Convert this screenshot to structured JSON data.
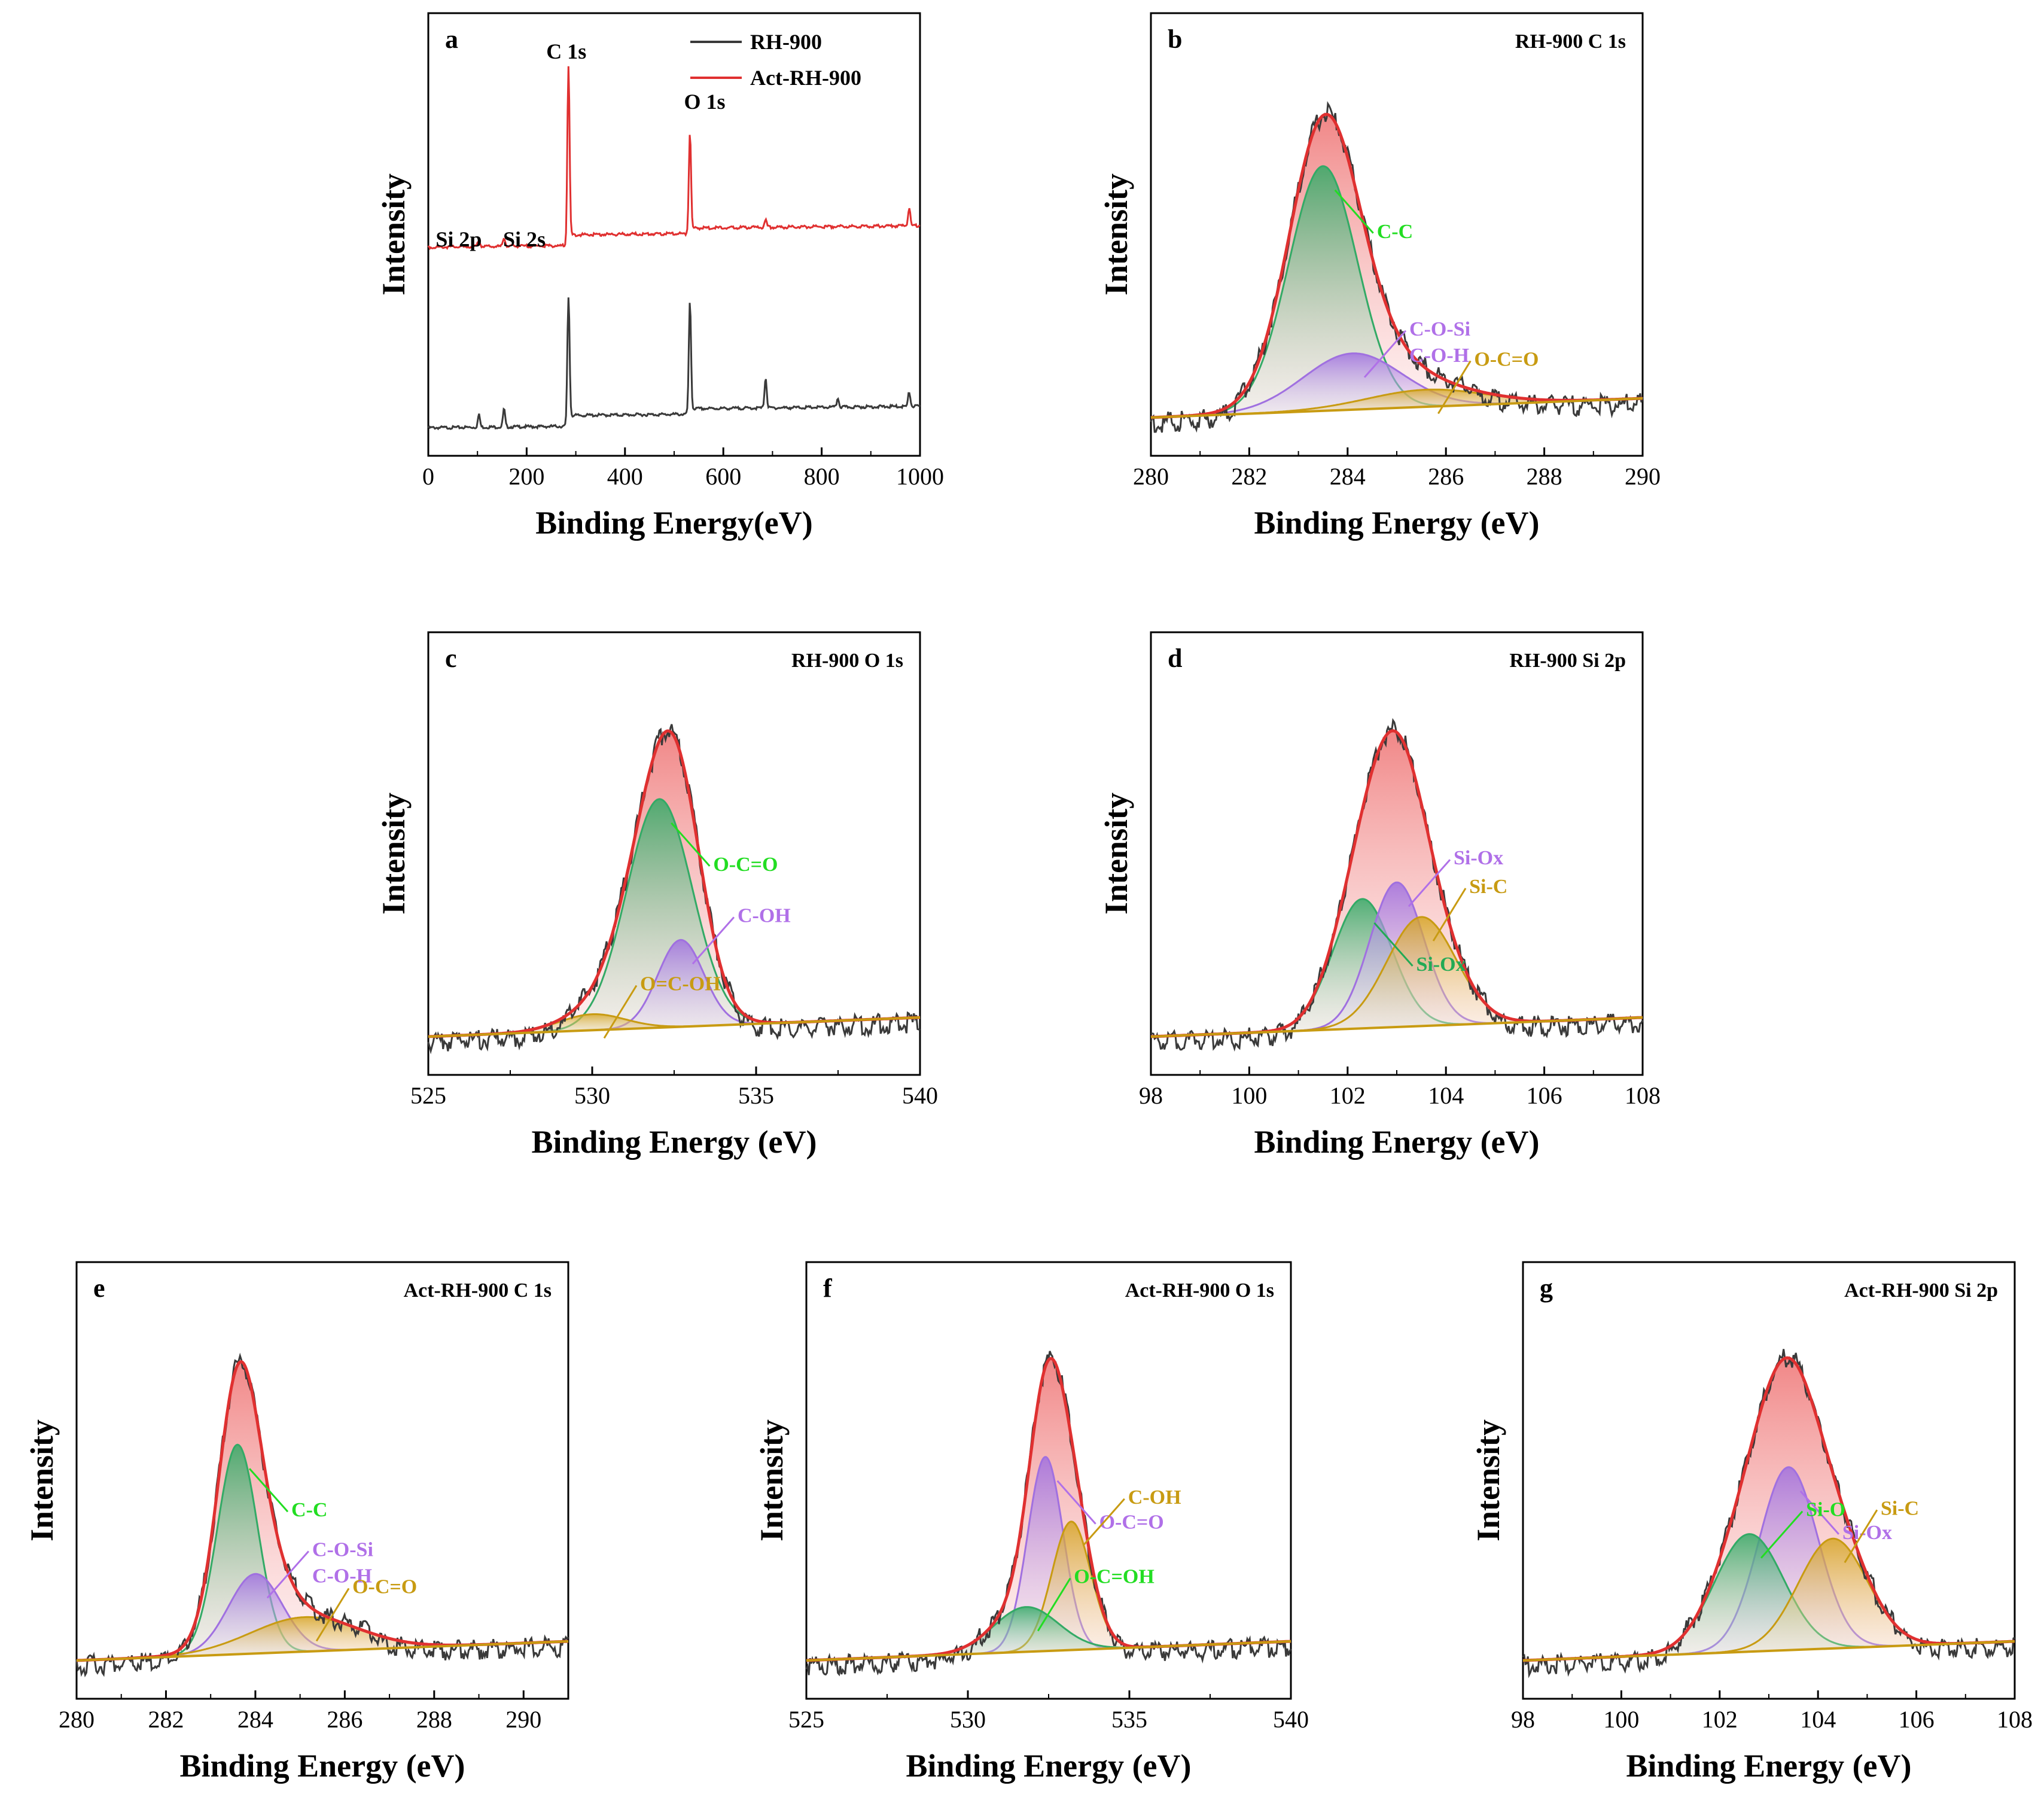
{
  "chart_data": [
    {
      "id": "a",
      "type": "line",
      "letter": "a",
      "title": "",
      "xlabel": "Binding Energy(eV)",
      "ylabel": "Intensity",
      "xlim": [
        0,
        1000
      ],
      "xticks": [
        0,
        200,
        400,
        600,
        800,
        1000
      ],
      "legend": [
        {
          "name": "RH-900",
          "color": "#3a3a3a"
        },
        {
          "name": "Act-RH-900",
          "color": "#e03030"
        }
      ],
      "series": [
        {
          "name": "RH-900",
          "color": "#3a3a3a",
          "peaks": [
            {
              "x": 103,
              "label": "Si 2p",
              "height": 0.07
            },
            {
              "x": 154,
              "label": "Si 2s",
              "height": 0.1
            },
            {
              "x": 285,
              "label": "C 1s",
              "height": 0.72
            },
            {
              "x": 532,
              "label": "O 1s",
              "height": 0.62
            },
            {
              "x": 686,
              "label": "",
              "height": 0.17
            },
            {
              "x": 833,
              "label": "",
              "height": 0.05
            },
            {
              "x": 978,
              "label": "",
              "height": 0.08
            }
          ]
        },
        {
          "name": "Act-RH-900",
          "color": "#e03030",
          "peaks": [
            {
              "x": 103,
              "label": "Si 2p",
              "height": 0.04
            },
            {
              "x": 154,
              "label": "Si 2s",
              "height": 0.05
            },
            {
              "x": 285,
              "label": "C 1s",
              "height": 1.0
            },
            {
              "x": 532,
              "label": "O 1s",
              "height": 0.56
            },
            {
              "x": 686,
              "label": "",
              "height": 0.04
            },
            {
              "x": 978,
              "label": "",
              "height": 0.1
            }
          ]
        }
      ],
      "annotations": [
        "C 1s",
        "O 1s",
        "Si 2p",
        "Si 2s"
      ]
    },
    {
      "id": "b",
      "type": "area",
      "letter": "b",
      "title": "RH-900 C 1s",
      "xlabel": "Binding Energy (eV)",
      "ylabel": "Intensity",
      "xlim": [
        280,
        290
      ],
      "xticks": [
        280,
        282,
        284,
        286,
        288,
        290
      ],
      "components": [
        {
          "label": "C-C",
          "center": 283.5,
          "height": 1.0,
          "width": 0.7,
          "color": "#33aa66",
          "label_color": "#22dd22"
        },
        {
          "label": "C-O-Si\nC-O-H",
          "center": 284.1,
          "height": 0.23,
          "width": 1.0,
          "color": "#a070e0",
          "label_color": "#b070e8"
        },
        {
          "label": "O-C=O",
          "center": 285.6,
          "height": 0.07,
          "width": 1.2,
          "color": "#c89b12",
          "label_color": "#c89b12"
        }
      ]
    },
    {
      "id": "c",
      "type": "area",
      "letter": "c",
      "title": "RH-900 O 1s",
      "xlabel": "Binding Energy (eV)",
      "ylabel": "Intensity",
      "xlim": [
        525,
        540
      ],
      "xticks": [
        525,
        530,
        535,
        540
      ],
      "components": [
        {
          "label": "O-C=O",
          "center": 532.05,
          "height": 1.0,
          "width": 1.0,
          "color": "#33aa66",
          "label_color": "#22dd22"
        },
        {
          "label": "C-OH",
          "center": 532.7,
          "height": 0.38,
          "width": 0.7,
          "color": "#a070e0",
          "label_color": "#b070e8"
        },
        {
          "label": "O=C-OH",
          "center": 530.0,
          "height": 0.07,
          "width": 1.0,
          "color": "#c89b12",
          "label_color": "#c89b12"
        }
      ]
    },
    {
      "id": "d",
      "type": "area",
      "letter": "d",
      "title": "RH-900 Si 2p",
      "xlabel": "Binding Energy (eV)",
      "ylabel": "Intensity",
      "xlim": [
        98,
        108
      ],
      "xticks": [
        98,
        100,
        102,
        104,
        106,
        108
      ],
      "components": [
        {
          "label": "Si-Ox",
          "center": 102.3,
          "height": 0.51,
          "width": 0.6,
          "color": "#33aa66",
          "label_color": "#22aa55"
        },
        {
          "label": "Si-Ox",
          "center": 103.0,
          "height": 0.57,
          "width": 0.55,
          "color": "#a070e0",
          "label_color": "#b070e8"
        },
        {
          "label": "Si-C",
          "center": 103.5,
          "height": 0.43,
          "width": 0.7,
          "color": "#c89b12",
          "label_color": "#c89b12"
        }
      ]
    },
    {
      "id": "e",
      "type": "area",
      "letter": "e",
      "title": "Act-RH-900 C 1s",
      "xlabel": "Binding Energy (eV)",
      "ylabel": "Intensity",
      "xlim": [
        280,
        291
      ],
      "xticks": [
        280,
        282,
        284,
        286,
        288,
        290
      ],
      "components": [
        {
          "label": "C-C",
          "center": 283.6,
          "height": 0.79,
          "width": 0.45,
          "color": "#33aa66",
          "label_color": "#22dd22"
        },
        {
          "label": "C-O-Si\nC-O-H",
          "center": 284.0,
          "height": 0.3,
          "width": 0.6,
          "color": "#a070e0",
          "label_color": "#b070e8"
        },
        {
          "label": "O-C=O",
          "center": 285.1,
          "height": 0.13,
          "width": 1.2,
          "color": "#c89b12",
          "label_color": "#c89b12"
        }
      ]
    },
    {
      "id": "f",
      "type": "area",
      "letter": "f",
      "title": "Act-RH-900 O 1s",
      "xlabel": "Binding Energy (eV)",
      "ylabel": "Intensity",
      "xlim": [
        525,
        540
      ],
      "xticks": [
        525,
        530,
        535,
        540
      ],
      "components": [
        {
          "label": "O-C=O",
          "center": 532.4,
          "height": 0.65,
          "width": 0.55,
          "color": "#a070e0",
          "label_color": "#b070e8"
        },
        {
          "label": "C-OH",
          "center": 533.2,
          "height": 0.43,
          "width": 0.6,
          "color": "#c89b12",
          "label_color": "#c89b12"
        },
        {
          "label": "O-C=OH",
          "center": 531.8,
          "height": 0.15,
          "width": 1.0,
          "color": "#33aa66",
          "label_color": "#22dd22"
        }
      ]
    },
    {
      "id": "g",
      "type": "area",
      "letter": "g",
      "title": "Act-RH-900 Si 2p",
      "xlabel": "Binding Energy (eV)",
      "ylabel": "Intensity",
      "xlim": [
        98,
        108
      ],
      "xticks": [
        98,
        100,
        102,
        104,
        106,
        108
      ],
      "components": [
        {
          "label": "Si-Ox",
          "center": 103.4,
          "height": 0.7,
          "width": 0.6,
          "color": "#a070e0",
          "label_color": "#b070e8"
        },
        {
          "label": "Si-O",
          "center": 102.6,
          "height": 0.45,
          "width": 0.7,
          "color": "#33aa66",
          "label_color": "#22dd22"
        },
        {
          "label": "Si-C",
          "center": 104.3,
          "height": 0.42,
          "width": 0.7,
          "color": "#c89b12",
          "label_color": "#c89b12"
        }
      ]
    }
  ]
}
